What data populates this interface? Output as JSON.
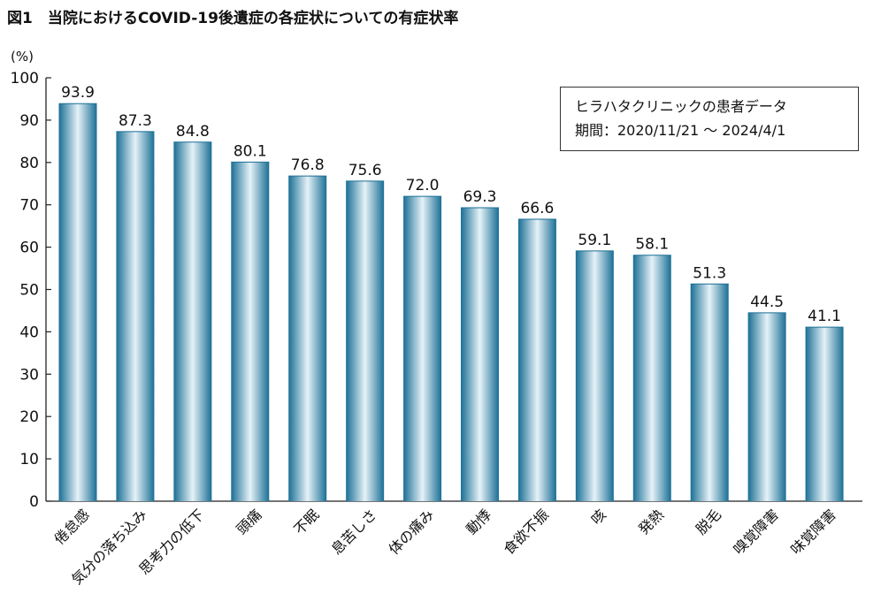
{
  "title": "図1　当院におけるCOVID-19後遺症の各症状についての有症状率",
  "chart_data": {
    "type": "bar",
    "title": "図1　当院におけるCOVID-19後遺症の各症状についての有症状率",
    "ylabel": "(%)",
    "xlabel": "",
    "ylim": [
      0,
      100
    ],
    "yticks": [
      0,
      10,
      20,
      30,
      40,
      50,
      60,
      70,
      80,
      90,
      100
    ],
    "categories": [
      "倦怠感",
      "気分の落ち込み",
      "思考力の低下",
      "頭痛",
      "不眠",
      "息苦しさ",
      "体の痛み",
      "動悸",
      "食欲不振",
      "咳",
      "発熱",
      "脱毛",
      "嗅覚障害",
      "味覚障害"
    ],
    "values": [
      93.9,
      87.3,
      84.8,
      80.1,
      76.8,
      75.6,
      72.0,
      69.3,
      66.6,
      59.1,
      58.1,
      51.3,
      44.5,
      41.1
    ],
    "value_labels": [
      "93.9",
      "87.3",
      "84.8",
      "80.1",
      "76.8",
      "75.6",
      "72.0",
      "69.3",
      "66.6",
      "59.1",
      "58.1",
      "51.3",
      "44.5",
      "41.1"
    ],
    "grid": false,
    "bar_colors": {
      "edge": "#1a6f95",
      "center": "#e6f2f8"
    },
    "annotation": {
      "line1": "ヒラハタクリニックの患者データ",
      "line2": "期間：2020/11/21 ～ 2024/4/1"
    }
  }
}
